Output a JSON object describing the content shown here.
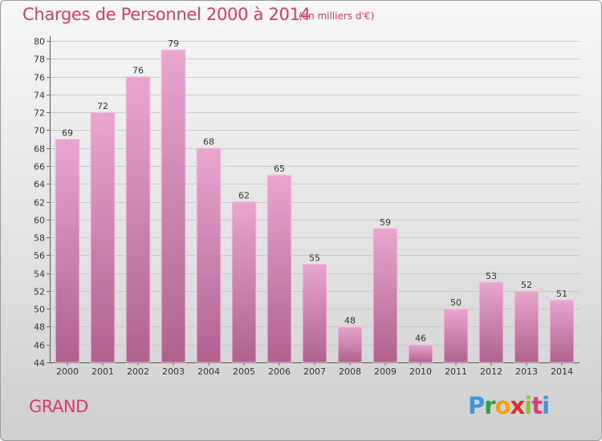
{
  "header": {
    "title": "Charges de Personnel 2000 à 2014",
    "subtitle": "(en milliers d'€)"
  },
  "footer": {
    "commune": "GRAND",
    "logo": {
      "p": "P",
      "r": "r",
      "o": "o",
      "x": "x",
      "i": "i",
      "t": "t",
      "i2": "i"
    }
  },
  "colors": {
    "title": "#d93a6a",
    "bar_top": "#e8a6cf",
    "bar_bottom": "#b0628f",
    "bar_edge": "#f2c8e0"
  },
  "chart_data": {
    "type": "bar",
    "title": "Charges de Personnel 2000 à 2014",
    "subtitle": "(en milliers d'€)",
    "categories": [
      "2000",
      "2001",
      "2002",
      "2003",
      "2004",
      "2005",
      "2006",
      "2007",
      "2008",
      "2009",
      "2010",
      "2011",
      "2012",
      "2013",
      "2014"
    ],
    "values": [
      69,
      72,
      76,
      79,
      68,
      62,
      65,
      55,
      48,
      59,
      46,
      50,
      53,
      52,
      51
    ],
    "ylim": [
      44,
      80
    ],
    "yticks": [
      44,
      46,
      48,
      50,
      52,
      54,
      56,
      58,
      60,
      62,
      64,
      66,
      68,
      70,
      72,
      74,
      76,
      78,
      80
    ],
    "grid": true,
    "legend": "none",
    "xlabel": "",
    "ylabel": ""
  }
}
